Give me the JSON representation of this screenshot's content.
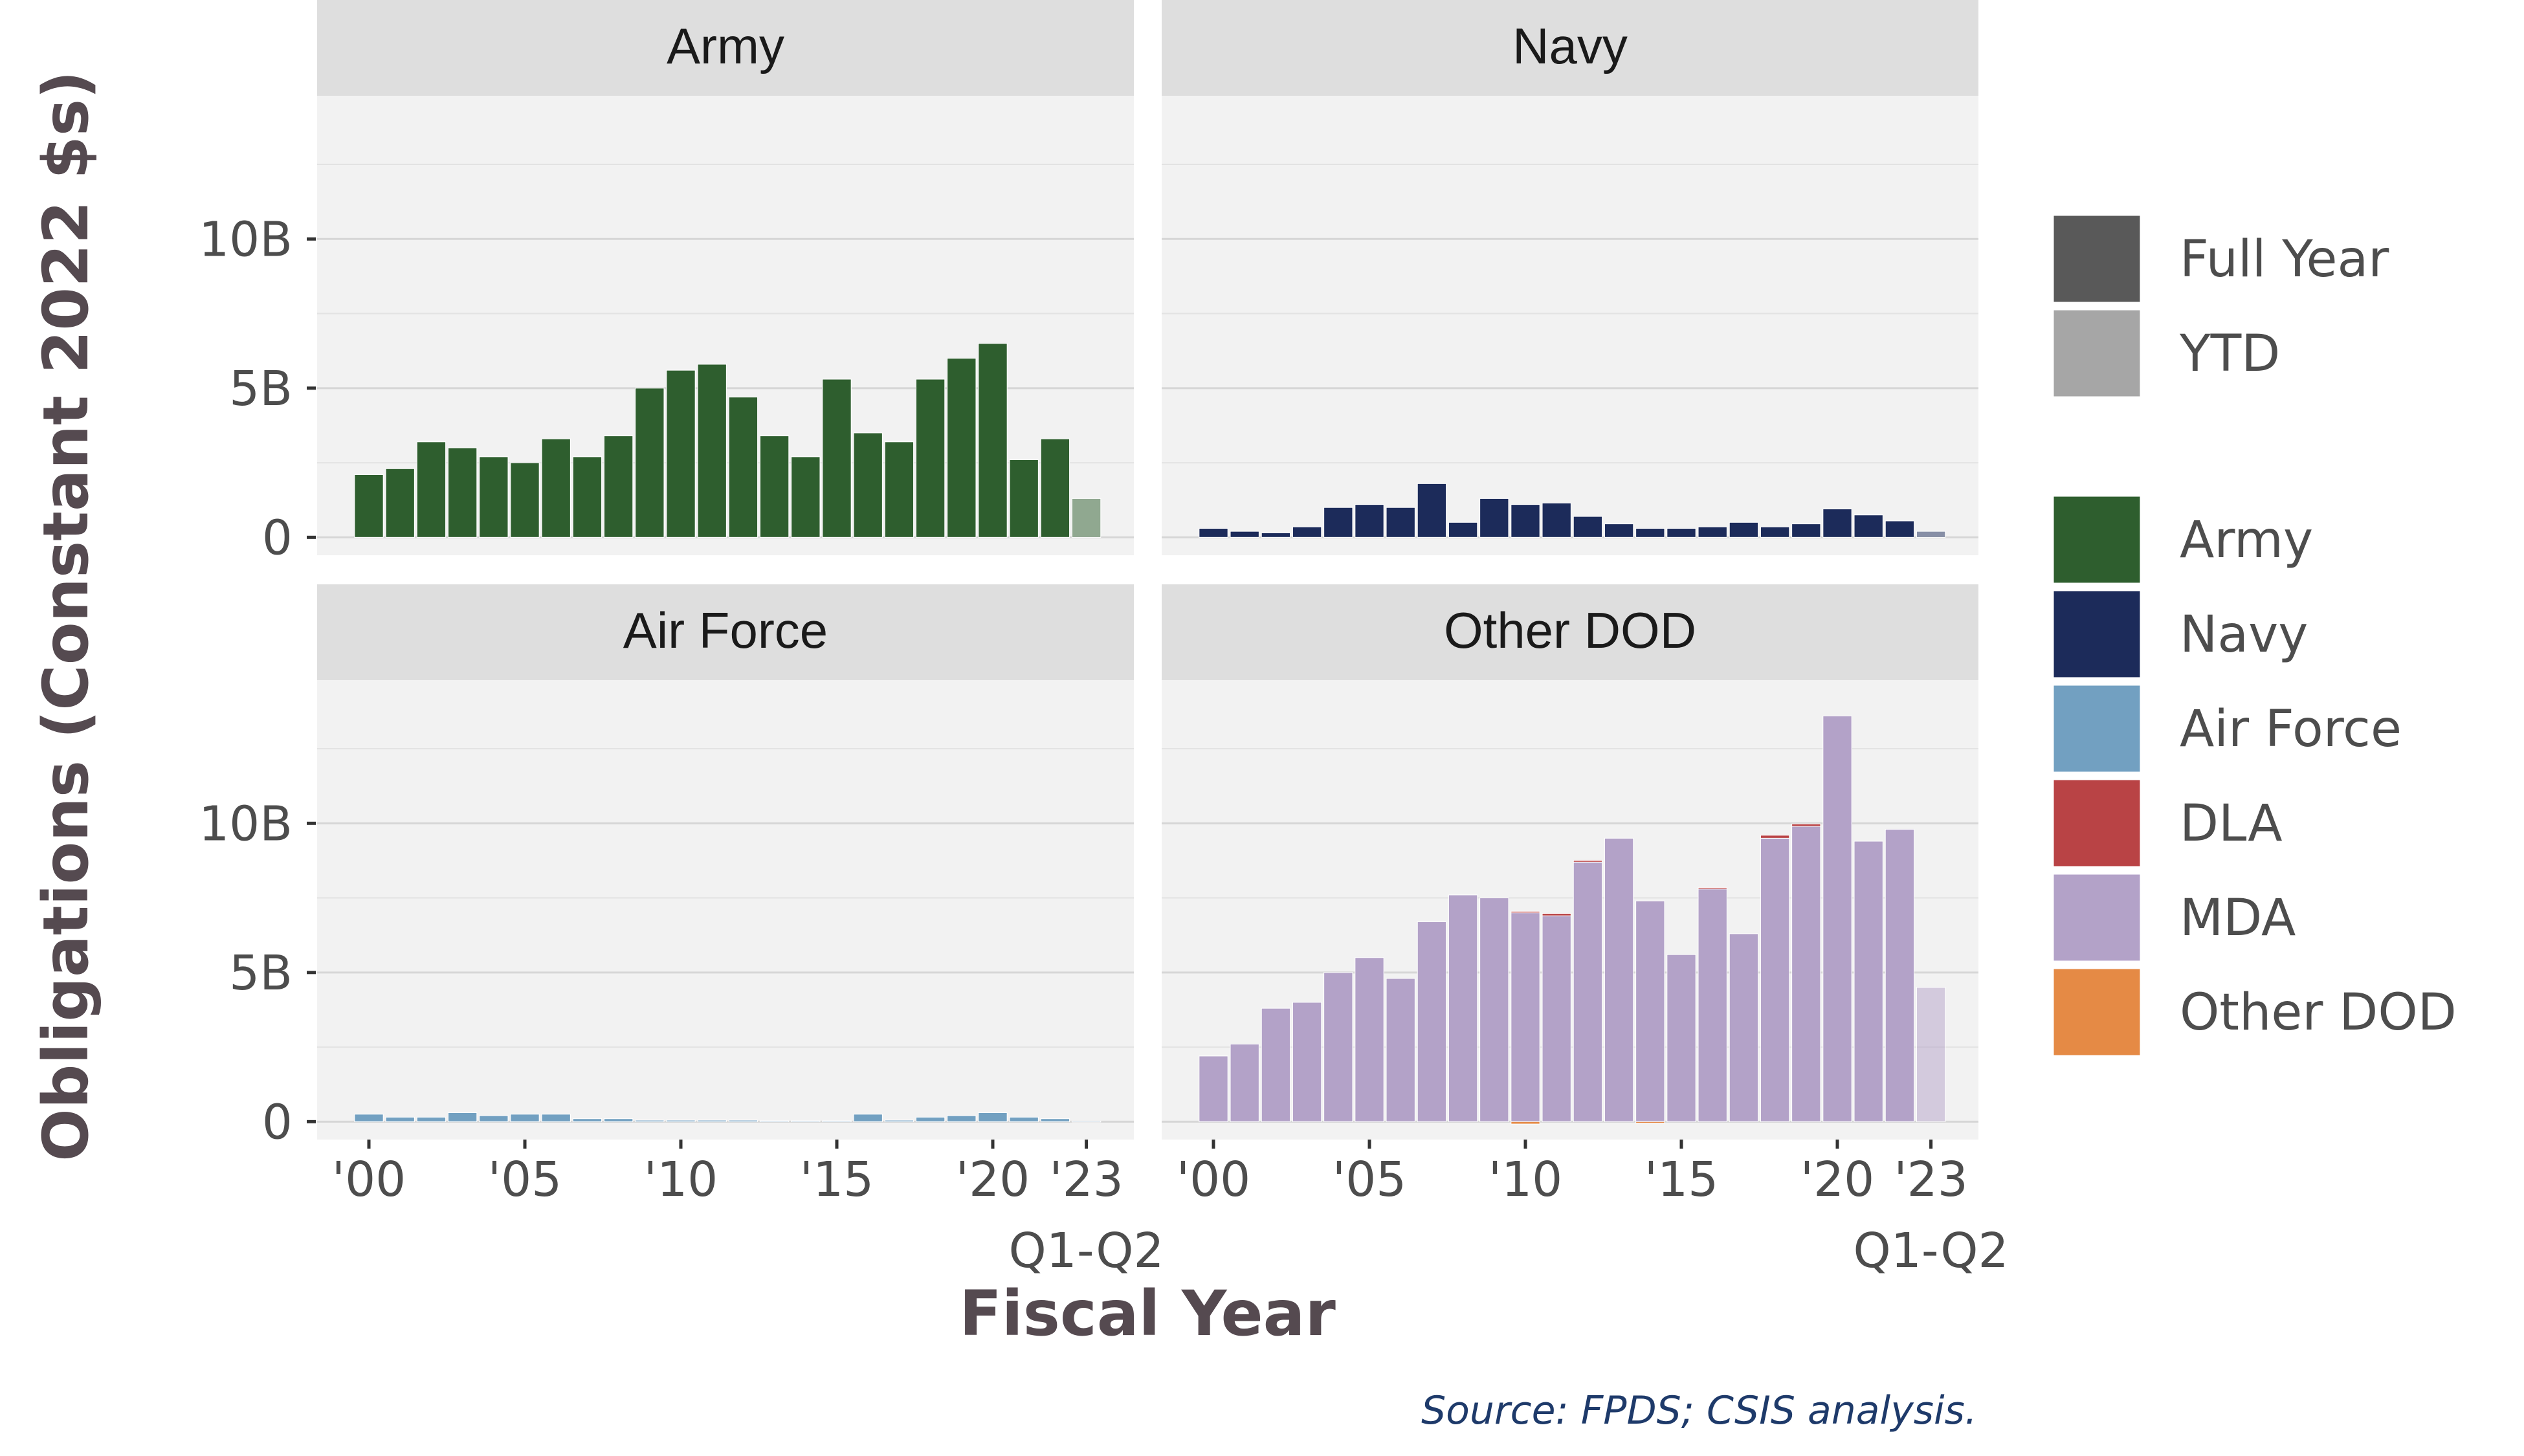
{
  "chart_data": {
    "type": "bar",
    "facets": [
      "Army",
      "Navy",
      "Air Force",
      "Other DOD"
    ],
    "x": [
      "2000",
      "2001",
      "2002",
      "2003",
      "2004",
      "2005",
      "2006",
      "2007",
      "2008",
      "2009",
      "2010",
      "2011",
      "2012",
      "2013",
      "2014",
      "2015",
      "2016",
      "2017",
      "2018",
      "2019",
      "2020",
      "2021",
      "2022",
      "2023"
    ],
    "x_tick_labels": [
      "'00",
      "'05",
      "'10",
      "'15",
      "'20",
      "'23"
    ],
    "x_tick_values": [
      "2000",
      "2005",
      "2010",
      "2015",
      "2020",
      "2023"
    ],
    "x_sub_label": "Q1-Q2",
    "ytd_year": "2023",
    "y_tick_labels": [
      "0",
      "5B",
      "10B"
    ],
    "y_tick_values": [
      0,
      5,
      10
    ],
    "ylim": [
      -0.6,
      14.8
    ],
    "y_unit": "billions",
    "xlabel": "Fiscal Year",
    "ylabel": "Obligations (Constant 2022 $s)",
    "caption": "Source: FPDS; CSIS analysis.",
    "legend_period": [
      {
        "label": "Full Year",
        "color": "#595959"
      },
      {
        "label": "YTD",
        "color": "#a6a6a6"
      }
    ],
    "legend_customer": [
      {
        "label": "Army",
        "color": "#2e5e2e"
      },
      {
        "label": "Navy",
        "color": "#1c2b5a"
      },
      {
        "label": "Air Force",
        "color": "#72a0c1"
      },
      {
        "label": "DLA",
        "color": "#b94345"
      },
      {
        "label": "MDA",
        "color": "#b3a2c8"
      },
      {
        "label": "Other DOD",
        "color": "#e58a45"
      }
    ],
    "panels": [
      {
        "name": "Army",
        "series": [
          {
            "name": "Army",
            "color": "#2e5e2e",
            "values": [
              2.1,
              2.3,
              3.2,
              3.0,
              2.7,
              2.5,
              3.3,
              2.7,
              3.4,
              5.0,
              5.6,
              5.8,
              4.7,
              3.4,
              2.7,
              5.3,
              3.5,
              3.2,
              5.3,
              6.0,
              6.5,
              2.6,
              3.3,
              1.3
            ]
          }
        ]
      },
      {
        "name": "Navy",
        "series": [
          {
            "name": "Navy",
            "color": "#1c2b5a",
            "values": [
              0.3,
              0.2,
              0.15,
              0.35,
              1.0,
              1.1,
              1.0,
              1.8,
              0.5,
              1.3,
              1.1,
              1.15,
              0.7,
              0.45,
              0.3,
              0.3,
              0.35,
              0.5,
              0.35,
              0.45,
              0.95,
              0.75,
              0.55,
              0.2
            ]
          }
        ]
      },
      {
        "name": "Air Force",
        "series": [
          {
            "name": "Air Force",
            "color": "#72a0c1",
            "values": [
              0.25,
              0.15,
              0.15,
              0.3,
              0.2,
              0.25,
              0.25,
              0.1,
              0.1,
              0.05,
              0.05,
              0.05,
              0.05,
              0.03,
              0.03,
              0.03,
              0.25,
              0.05,
              0.15,
              0.2,
              0.3,
              0.15,
              0.1,
              0.02
            ]
          }
        ]
      },
      {
        "name": "Other DOD",
        "series": [
          {
            "name": "MDA",
            "color": "#b3a2c8",
            "values": [
              2.2,
              2.6,
              3.8,
              4.0,
              5.0,
              5.5,
              4.8,
              6.7,
              7.6,
              7.5,
              7.0,
              6.9,
              8.7,
              9.5,
              7.4,
              5.6,
              7.8,
              6.3,
              9.5,
              9.9,
              13.6,
              9.4,
              9.8,
              4.5
            ]
          },
          {
            "name": "DLA",
            "color": "#b94345",
            "values": [
              0,
              0,
              0,
              0,
              0,
              0,
              0,
              0,
              0,
              0,
              0.05,
              0.08,
              0.06,
              0,
              0,
              0,
              0.05,
              0,
              0.1,
              0.08,
              0,
              0,
              0,
              0
            ]
          },
          {
            "name": "Other DOD",
            "color": "#e58a45",
            "values": [
              0,
              0,
              0,
              0,
              0,
              0,
              0,
              0,
              0,
              0,
              -0.08,
              0,
              0,
              0,
              -0.05,
              0,
              0,
              0,
              0,
              0,
              0,
              0,
              0,
              0
            ]
          }
        ]
      }
    ]
  }
}
